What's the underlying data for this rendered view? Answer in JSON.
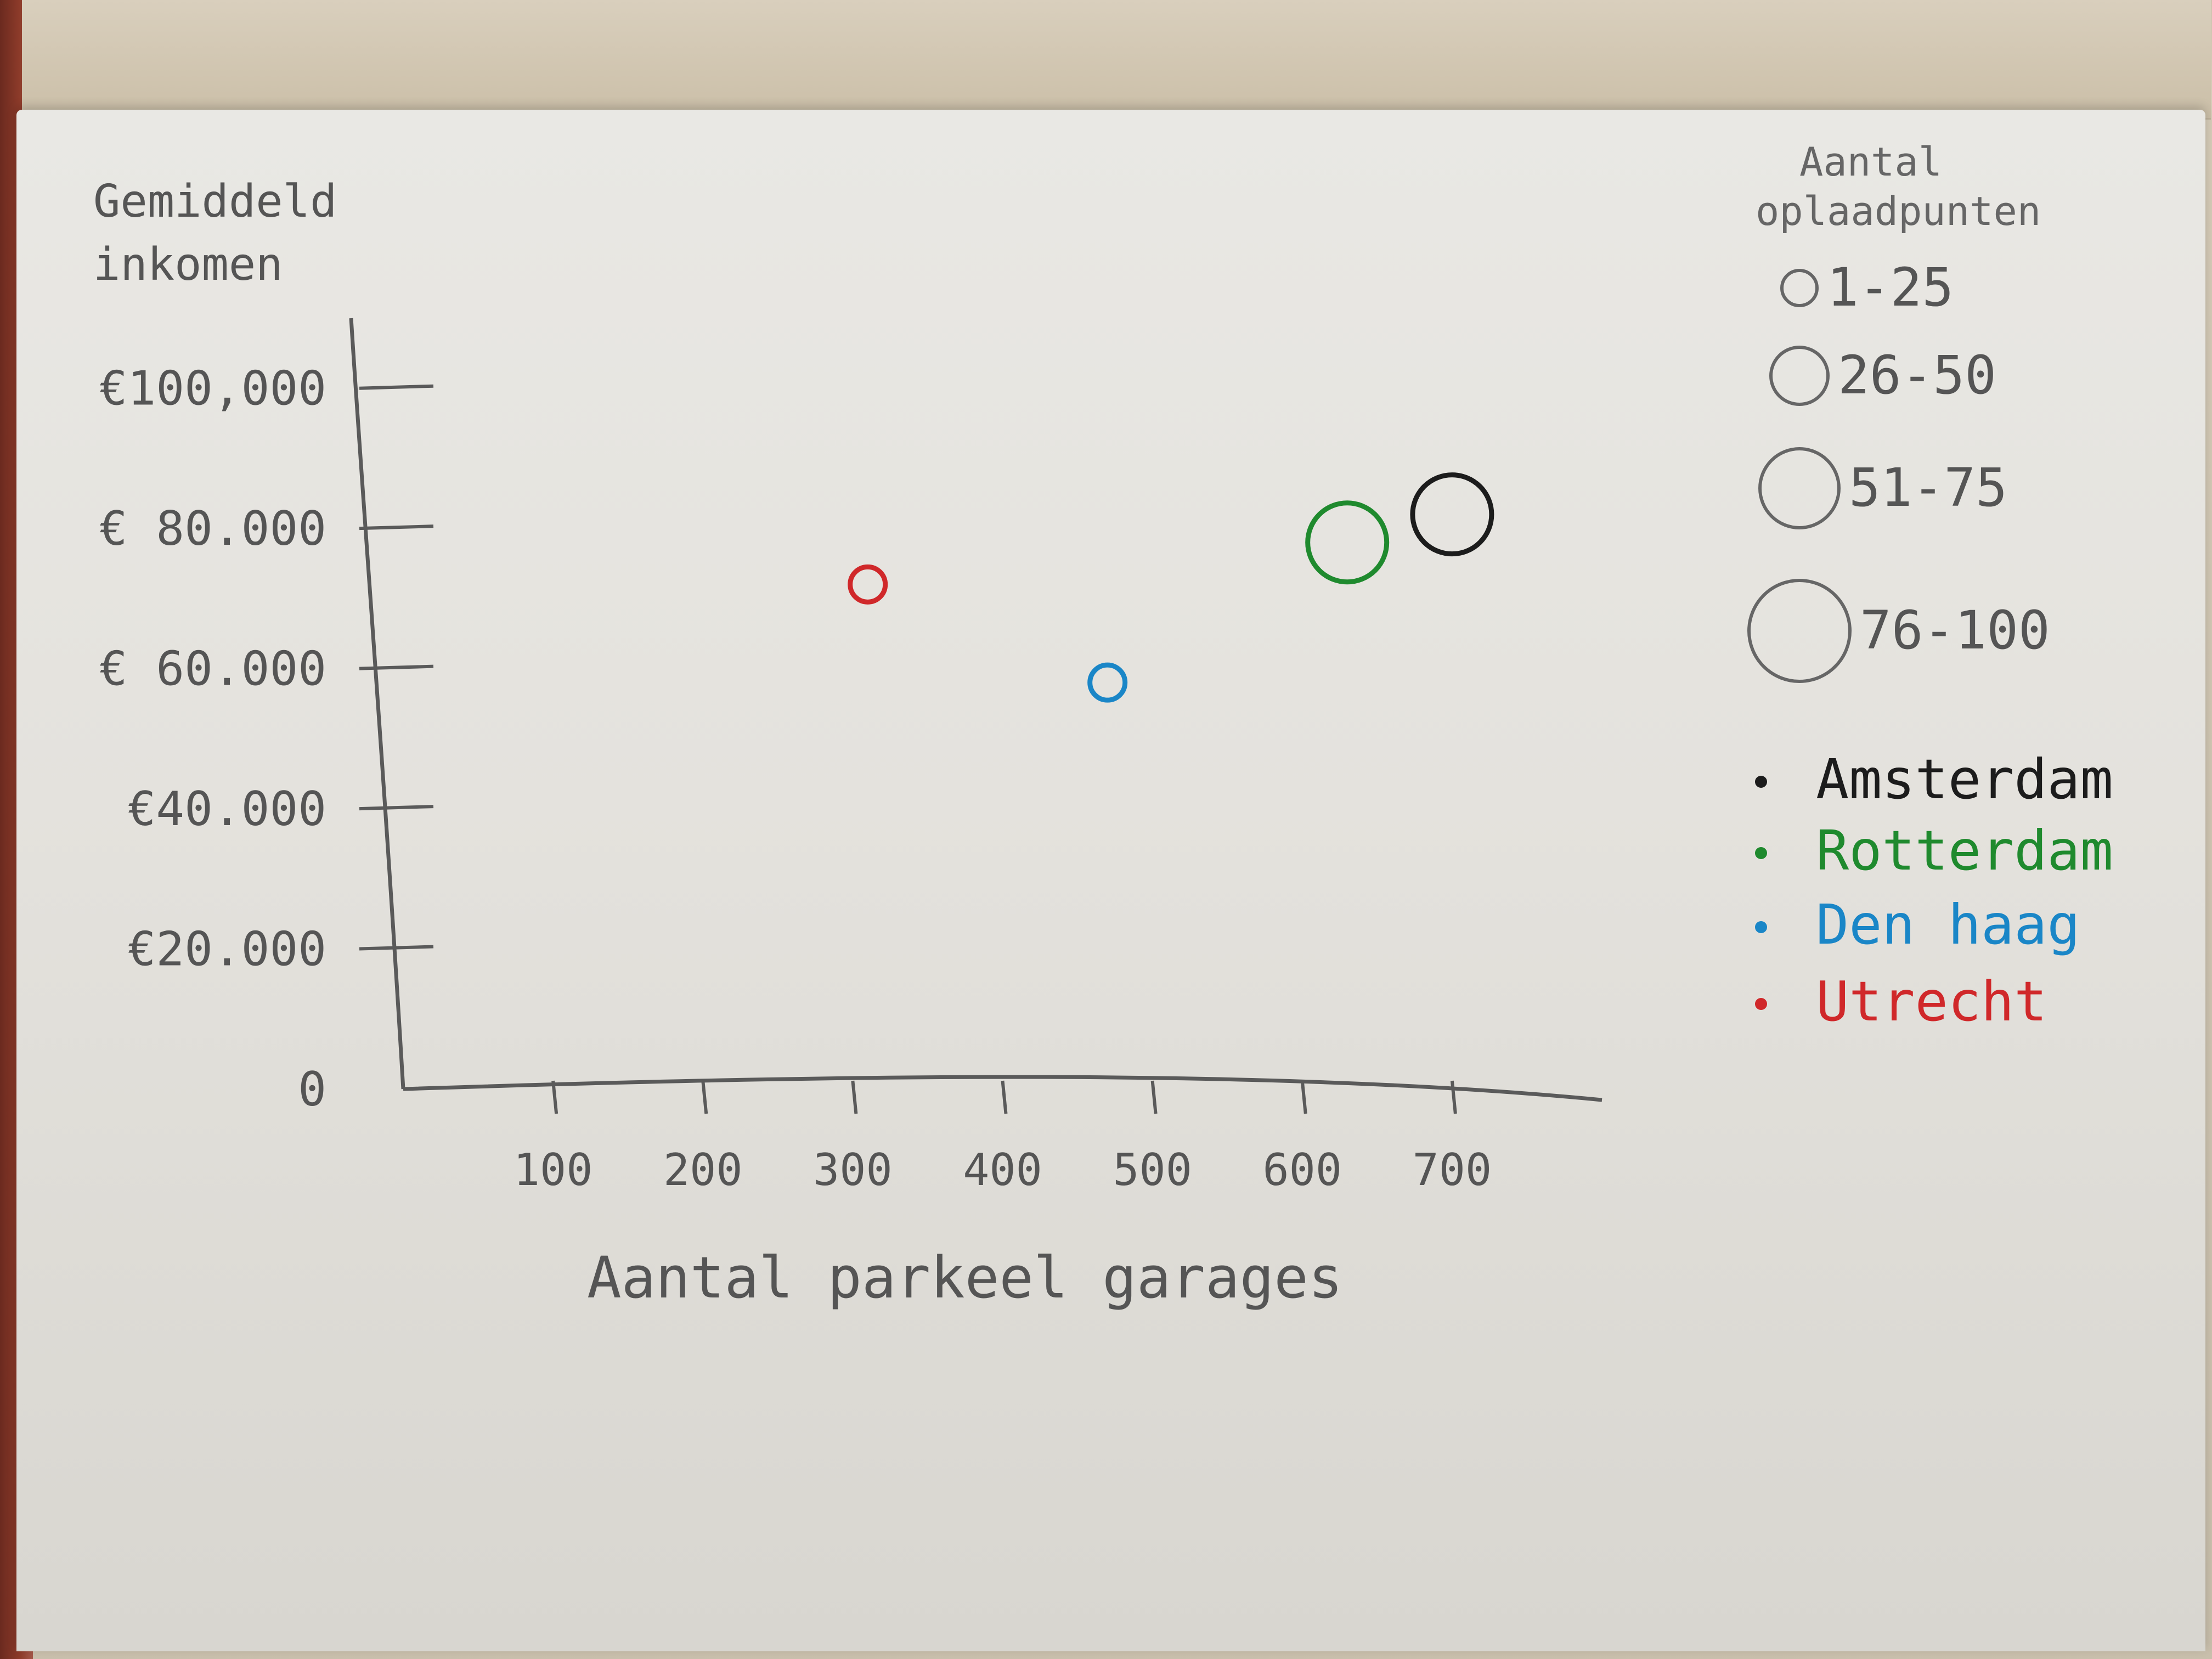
{
  "chart_data": {
    "type": "scatter",
    "title": "",
    "ylabel": "Gemiddeld inkomen",
    "xlabel": "Aantal parkeel garages",
    "xlim": [
      0,
      800
    ],
    "ylim": [
      0,
      110000
    ],
    "x_ticks": [
      100,
      200,
      300,
      400,
      500,
      600,
      700
    ],
    "x_tick_labels": [
      "100",
      "200",
      "300",
      "400",
      "500",
      "600",
      "700"
    ],
    "y_ticks": [
      0,
      20000,
      40000,
      60000,
      80000,
      100000
    ],
    "y_tick_labels": [
      "0",
      "€20.000",
      "€40.000",
      "€ 60.000",
      "€ 80.000",
      "€100,000"
    ],
    "grid": false,
    "size_legend": {
      "title": "Aantal oplaadpunten",
      "entries": [
        {
          "label": "1-25",
          "size_class": 1
        },
        {
          "label": "26-50",
          "size_class": 2
        },
        {
          "label": "51-75",
          "size_class": 3
        },
        {
          "label": "76-100",
          "size_class": 4
        }
      ],
      "placement": "top-right"
    },
    "color_legend": {
      "entries": [
        {
          "label": "Amsterdam",
          "color": "#1c1c1c"
        },
        {
          "label": "Rotterdam",
          "color": "#1f8a2e"
        },
        {
          "label": "Den haag",
          "color": "#1a86c7"
        },
        {
          "label": "Utrecht",
          "color": "#d0282a"
        }
      ],
      "placement": "right"
    },
    "series": [
      {
        "name": "Utrecht",
        "x": 310,
        "y": 72000,
        "size_class": 1,
        "color": "#d0282a"
      },
      {
        "name": "Den haag",
        "x": 470,
        "y": 58000,
        "size_class": 1,
        "color": "#1a86c7"
      },
      {
        "name": "Rotterdam",
        "x": 630,
        "y": 78000,
        "size_class": 3,
        "color": "#1f8a2e"
      },
      {
        "name": "Amsterdam",
        "x": 700,
        "y": 82000,
        "size_class": 3,
        "color": "#1c1c1c"
      }
    ]
  }
}
